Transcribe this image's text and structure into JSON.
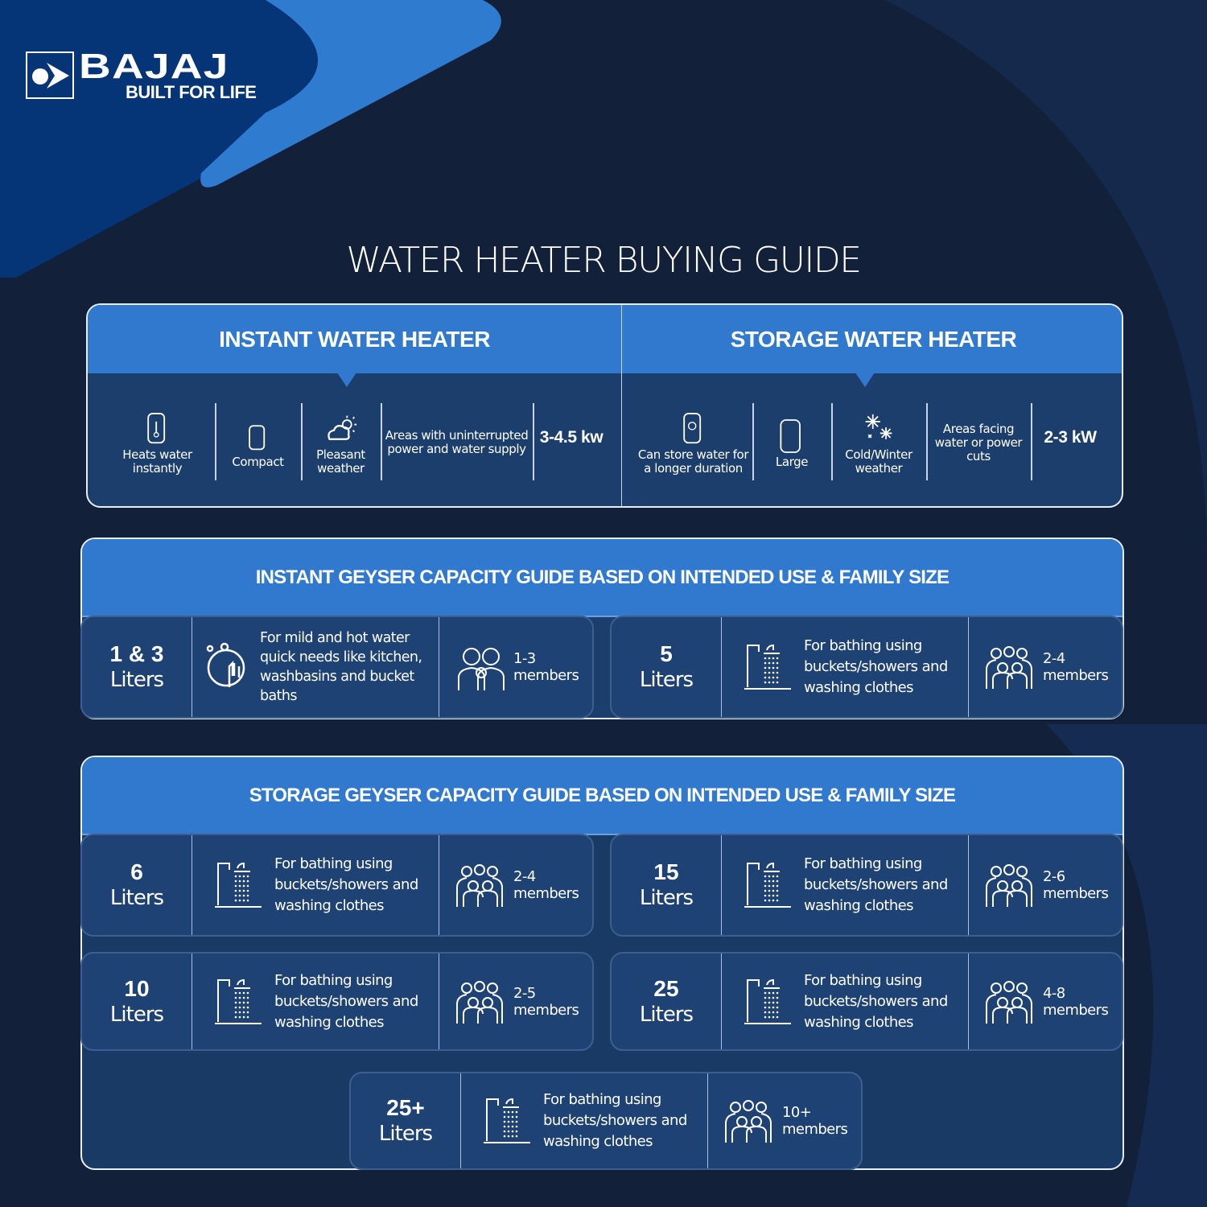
{
  "brand": {
    "name": "BAJAJ",
    "tagline": "BUILT FOR LIFE"
  },
  "colors": {
    "background": "#13203a",
    "header_blue": "#3179cf",
    "panel": "#1c3e6c",
    "card": "#1e4274",
    "shape_dark": "#053477",
    "shape_light": "#2f7bd0"
  },
  "title": "WATER HEATER BUYING GUIDE",
  "comparison": {
    "instant": {
      "heading": "INSTANT WATER HEATER",
      "features": [
        {
          "icon": "heater-thermometer-icon",
          "text": "Heats water instantly"
        },
        {
          "icon": "compact-heater-icon",
          "text": "Compact"
        },
        {
          "icon": "sun-cloud-icon",
          "text": "Pleasant weather"
        },
        {
          "icon": "",
          "text": "Areas with uninterrupted power and water supply"
        }
      ],
      "power": "3-4.5 kw"
    },
    "storage": {
      "heading": "STORAGE WATER HEATER",
      "features": [
        {
          "icon": "heater-drops-icon",
          "text": "Can store water for a longer duration"
        },
        {
          "icon": "large-heater-icon",
          "text": "Large"
        },
        {
          "icon": "snowflake-icon",
          "text": "Cold/Winter weather"
        },
        {
          "icon": "",
          "text": "Areas facing water or power cuts"
        }
      ],
      "power": "2-3 kW"
    }
  },
  "instant_guide": {
    "heading": "INSTANT GEYSER CAPACITY GUIDE BASED ON INTENDED USE & FAMILY SIZE",
    "cards": [
      {
        "size": "1 & 3",
        "unit": "Liters",
        "use_icon": "hand-washing-icon",
        "use": "For mild and hot water quick needs like kitchen, washbasins and bucket baths",
        "members_icon": "small-family-icon",
        "members": "1-3 members"
      },
      {
        "size": "5",
        "unit": "Liters",
        "use_icon": "shower-icon",
        "use": "For bathing using buckets/showers and washing clothes",
        "members_icon": "family-icon",
        "members": "2-4 members"
      }
    ]
  },
  "storage_guide": {
    "heading": "STORAGE GEYSER CAPACITY GUIDE BASED ON INTENDED USE & FAMILY SIZE",
    "cards": [
      {
        "size": "6",
        "unit": "Liters",
        "use_icon": "shower-icon",
        "use": "For bathing using buckets/showers and washing clothes",
        "members_icon": "family-icon",
        "members": "2-4 members"
      },
      {
        "size": "15",
        "unit": "Liters",
        "use_icon": "shower-icon",
        "use": "For bathing using buckets/showers and washing clothes",
        "members_icon": "family-icon",
        "members": "2-6 members"
      },
      {
        "size": "10",
        "unit": "Liters",
        "use_icon": "shower-icon",
        "use": "For bathing using buckets/showers and washing clothes",
        "members_icon": "family-icon",
        "members": "2-5 members"
      },
      {
        "size": "25",
        "unit": "Liters",
        "use_icon": "shower-icon",
        "use": "For bathing using buckets/showers and washing clothes",
        "members_icon": "family-icon",
        "members": "4-8 members"
      },
      {
        "size": "25+",
        "unit": "Liters",
        "use_icon": "shower-icon",
        "use": "For bathing using buckets/showers and washing clothes",
        "members_icon": "family-icon",
        "members": "10+ members"
      }
    ]
  }
}
